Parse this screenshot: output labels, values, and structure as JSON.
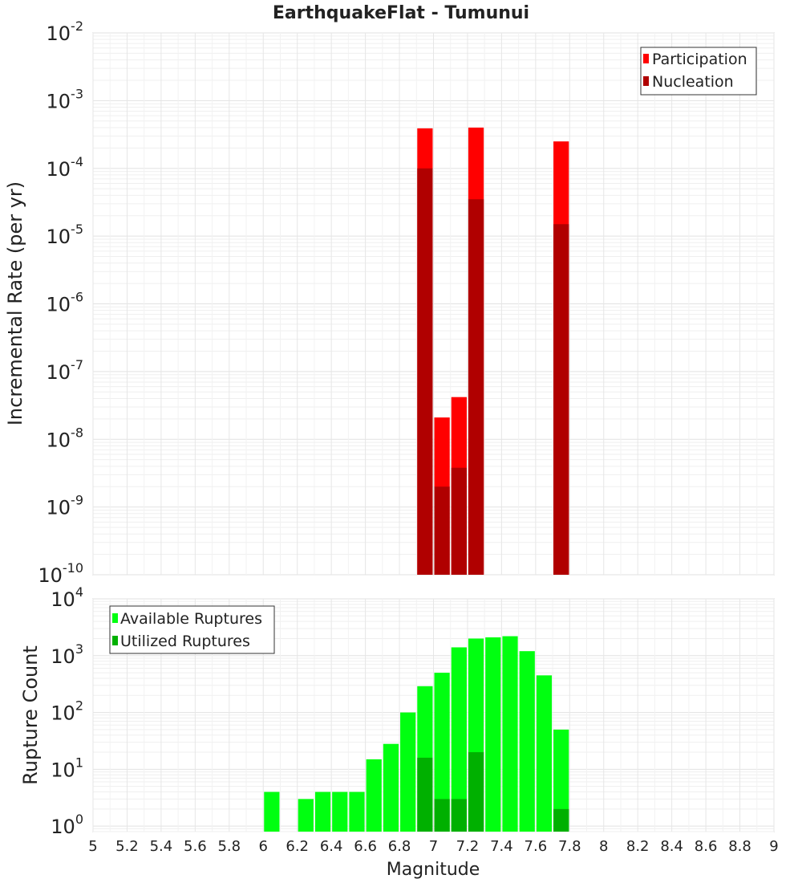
{
  "title": "EarthquakeFlat - Tumunui",
  "xlabel": "Magnitude",
  "xticks": [
    "5",
    "5.2",
    "5.4",
    "5.6",
    "5.8",
    "6",
    "6.2",
    "6.4",
    "6.6",
    "6.8",
    "7",
    "7.2",
    "7.4",
    "7.6",
    "7.8",
    "8",
    "8.2",
    "8.4",
    "8.6",
    "8.8",
    "9"
  ],
  "colors": {
    "participation": "#ff0000",
    "nucleation": "#b00000",
    "available": "#00ff10",
    "utilized": "#00b000"
  },
  "chart_data": [
    {
      "type": "bar",
      "ylabel": "Incremental Rate (per yr)",
      "yscale": "log",
      "xlim": [
        5,
        9
      ],
      "ylim": [
        1e-10,
        0.01
      ],
      "yticks": [
        {
          "base": "10",
          "exp": "-2"
        },
        {
          "base": "10",
          "exp": "-3"
        },
        {
          "base": "10",
          "exp": "-4"
        },
        {
          "base": "10",
          "exp": "-5"
        },
        {
          "base": "10",
          "exp": "-6"
        },
        {
          "base": "10",
          "exp": "-7"
        },
        {
          "base": "10",
          "exp": "-8"
        },
        {
          "base": "10",
          "exp": "-9"
        },
        {
          "base": "10",
          "exp": "-10"
        }
      ],
      "legend_position": "top-right",
      "x": [
        6.95,
        7.05,
        7.15,
        7.25,
        7.75
      ],
      "series": [
        {
          "name": "Participation",
          "values": [
            0.00039,
            2.1e-08,
            4.2e-08,
            0.0004,
            0.00025
          ]
        },
        {
          "name": "Nucleation",
          "values": [
            0.0001,
            2e-09,
            3.8e-09,
            3.5e-05,
            1.5e-05
          ]
        }
      ],
      "grid": true
    },
    {
      "type": "bar",
      "ylabel": "Rupture Count",
      "yscale": "log",
      "xlim": [
        5,
        9
      ],
      "ylim": [
        0.8,
        10000
      ],
      "yticks": [
        {
          "base": "10",
          "exp": "4"
        },
        {
          "base": "10",
          "exp": "3"
        },
        {
          "base": "10",
          "exp": "2"
        },
        {
          "base": "10",
          "exp": "1"
        },
        {
          "base": "10",
          "exp": "0"
        }
      ],
      "legend_position": "top-left",
      "x": [
        6.05,
        6.25,
        6.35,
        6.45,
        6.55,
        6.65,
        6.75,
        6.85,
        6.95,
        7.05,
        7.15,
        7.25,
        7.35,
        7.45,
        7.55,
        7.65,
        7.75
      ],
      "series": [
        {
          "name": "Available Ruptures",
          "values": [
            4,
            3,
            4,
            4,
            4,
            15,
            28,
            100,
            290,
            500,
            1400,
            2000,
            2100,
            2200,
            1200,
            450,
            50
          ]
        },
        {
          "name": "Utilized Ruptures",
          "values": [
            0,
            0,
            0,
            0,
            0,
            0,
            0,
            0,
            16,
            3,
            3,
            20,
            0,
            0,
            0,
            0,
            2
          ]
        }
      ],
      "grid": true
    }
  ]
}
